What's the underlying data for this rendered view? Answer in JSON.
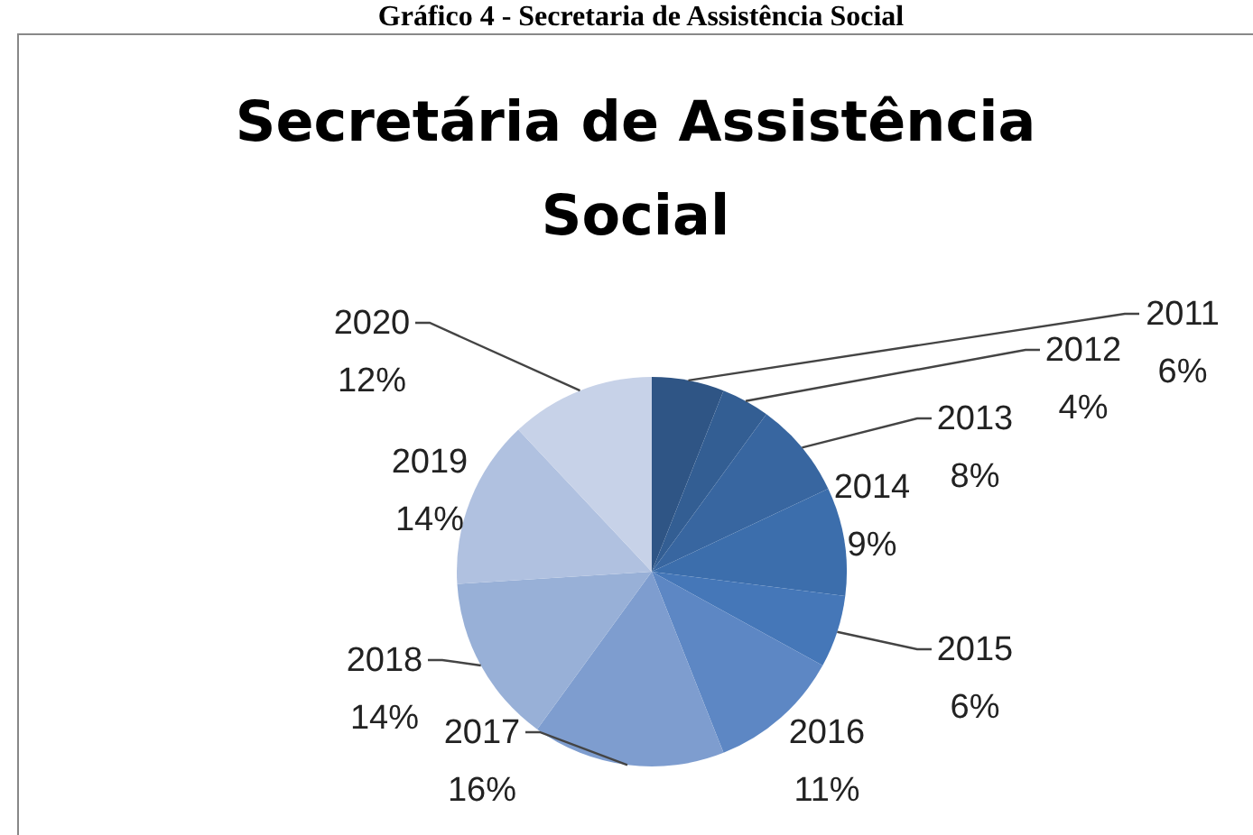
{
  "chart_data": {
    "type": "pie",
    "title": "Secretária de Assistência Social",
    "annotations": [
      "Gráfico 4 - Secretaria de Assistência Social"
    ],
    "categories": [
      "2011",
      "2012",
      "2013",
      "2014",
      "2015",
      "2016",
      "2017",
      "2018",
      "2019",
      "2020"
    ],
    "values": [
      6,
      4,
      8,
      9,
      6,
      11,
      16,
      14,
      14,
      12
    ],
    "colors": [
      "#2f5585",
      "#335e93",
      "#3866a0",
      "#3c6eac",
      "#4577b8",
      "#5d87c4",
      "#7e9dcf",
      "#98b0d7",
      "#b0c1e0",
      "#c7d2e8"
    ],
    "value_labels": [
      "6%",
      "4%",
      "8%",
      "9%",
      "6%",
      "11%",
      "16%",
      "14%",
      "14%",
      "12%"
    ]
  }
}
